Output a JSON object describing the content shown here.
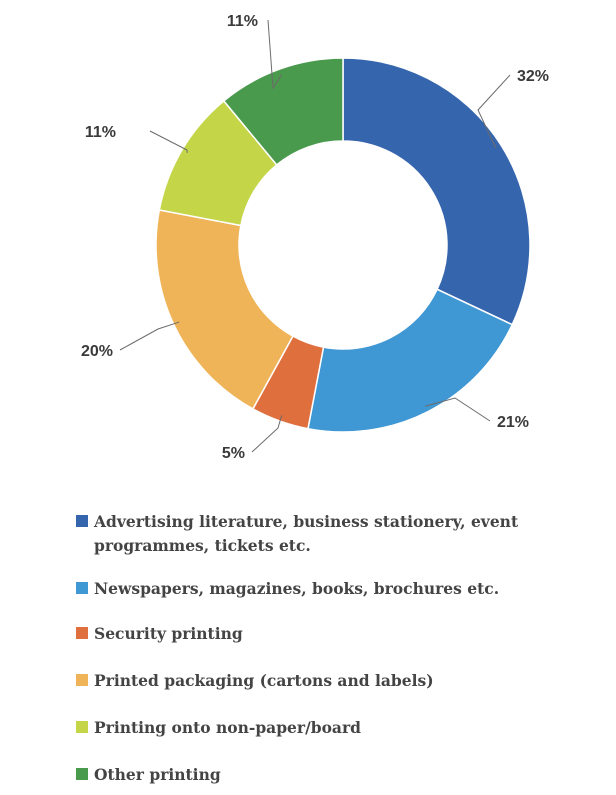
{
  "chart_data": {
    "type": "pie",
    "donut": true,
    "categories": [
      "Advertising literature, business stationery, event programmes, tickets etc.",
      "Newspapers, magazines, books, brochures etc.",
      "Security printing",
      "Printed packaging (cartons and labels)",
      "Printing onto non-paper/board",
      "Other printing"
    ],
    "values": [
      32,
      21,
      5,
      20,
      11,
      11
    ],
    "value_labels": [
      "32%",
      "21%",
      "5%",
      "20%",
      "11%",
      "11%"
    ],
    "colors": [
      "#3565ad",
      "#3f97d3",
      "#e06f3e",
      "#f0b458",
      "#c5d548",
      "#4a9a4e"
    ],
    "legend_position": "bottom",
    "legend_lines": [
      [
        "Advertising literature, business stationery, event",
        "programmes, tickets etc."
      ],
      [
        "Newspapers, magazines, books, brochures etc."
      ],
      [
        "Security printing"
      ],
      [
        "Printed packaging (cartons and labels)"
      ],
      [
        "Printing onto non-paper/board"
      ],
      [
        "Other printing"
      ]
    ]
  }
}
